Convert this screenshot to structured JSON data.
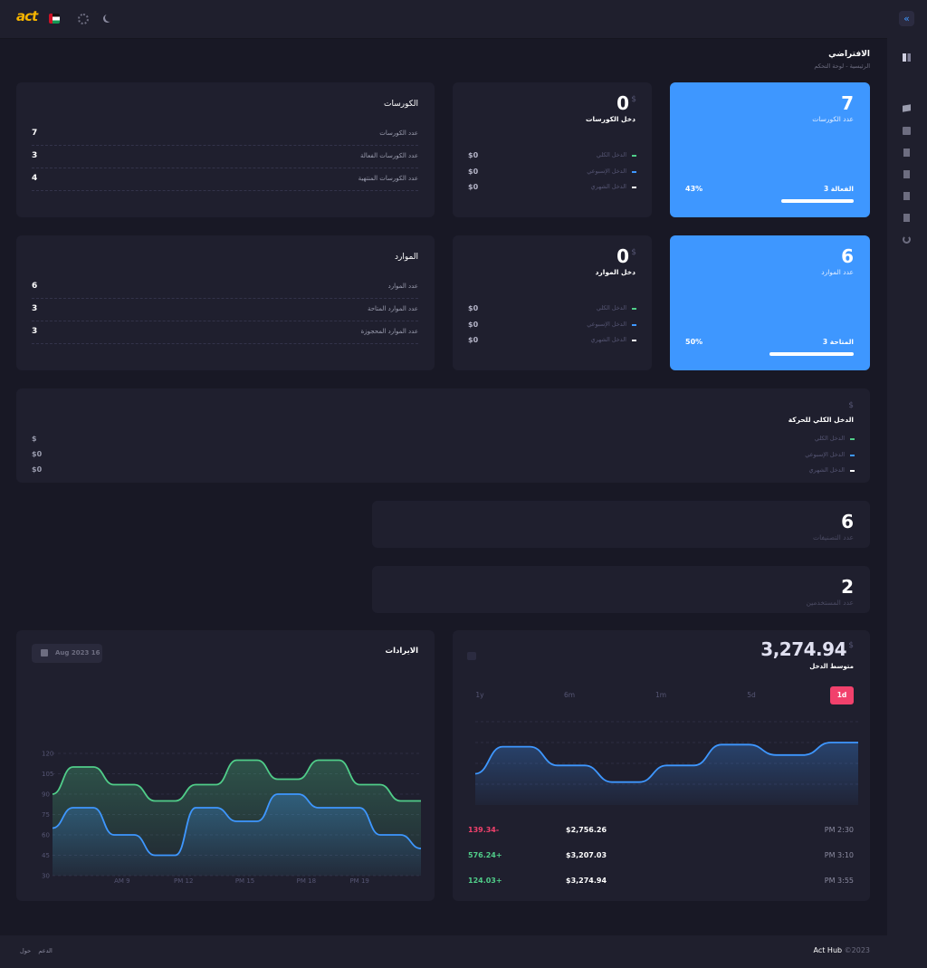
{
  "topbar": {
    "logo": "act"
  },
  "page": {
    "title": "الافتراضي",
    "breadcrumb": [
      "الرئيسية",
      "لوحة التحكم"
    ]
  },
  "summary_cards": [
    {
      "value": 7,
      "label": "عدد الكورسات",
      "status": "الفعالة 3",
      "percent": "43%",
      "progress": 43
    },
    {
      "value": 6,
      "label": "عدد الموارد",
      "status": "المتاحة 3",
      "percent": "50%",
      "progress": 50
    }
  ],
  "income_cards": [
    {
      "value": 0,
      "currency": "$",
      "title": "دخل الكورسات",
      "rows": [
        {
          "label": "الدخل الكلي",
          "amount": "$0"
        },
        {
          "label": "الدخل الإسبوعي",
          "amount": "$0"
        },
        {
          "label": "الدخل الشهري",
          "amount": "$0"
        }
      ]
    },
    {
      "value": 0,
      "currency": "$",
      "title": "دخل الموارد",
      "rows": [
        {
          "label": "الدخل الكلي",
          "amount": "$0"
        },
        {
          "label": "الدخل الإسبوعي",
          "amount": "$0"
        },
        {
          "label": "الدخل الشهري",
          "amount": "$0"
        }
      ]
    }
  ],
  "list_cards": [
    {
      "title": "الكورسات",
      "rows": [
        {
          "label": "عدد الكورسات",
          "value": 7
        },
        {
          "label": "عدد الكورسات الفعالة",
          "value": 3
        },
        {
          "label": "عدد الكورسات المنتهية",
          "value": 4
        }
      ]
    },
    {
      "title": "الموارد",
      "rows": [
        {
          "label": "عدد الموارد",
          "value": 6
        },
        {
          "label": "عدد الموارد المتاحة",
          "value": 3
        },
        {
          "label": "عدد الموارد المحجوزة",
          "value": 3
        }
      ]
    }
  ],
  "total_income": {
    "currency": "$",
    "title": "الدخل الكلي للحركة",
    "legend": [
      "الدخل الكلي",
      "الدخل الإسبوعي",
      "الدخل الشهري"
    ],
    "values": [
      "$",
      "$0",
      "$0"
    ]
  },
  "stat_cards": [
    {
      "value": 6,
      "label": "عدد التصنيفات"
    },
    {
      "value": 2,
      "label": "عدد المستخدمين"
    }
  ],
  "revenue": {
    "date": "Aug 2023 16"
  },
  "average_income": {
    "value": "3,274.94",
    "currency": "$",
    "label": "متوسط الدخل",
    "ranges": [
      "1y",
      "6m",
      "1m",
      "5d",
      "1d"
    ],
    "active_range": "1d",
    "transactions": [
      {
        "time": "PM 2:30",
        "price": "$2,756.26",
        "change": "139.34-"
      },
      {
        "time": "PM 3:10",
        "price": "$3,207.03",
        "change": "576.24+"
      },
      {
        "time": "PM 3:55",
        "price": "$3,274.94",
        "change": "124.03+"
      }
    ]
  },
  "chart_data": [
    {
      "type": "area",
      "title": "الايرادات",
      "x": [
        0,
        1,
        2,
        3,
        4,
        5,
        6,
        7,
        8,
        9,
        10,
        11,
        12,
        13,
        14,
        15,
        16,
        17,
        18
      ],
      "xlim": [
        0,
        18
      ],
      "xticks": [
        {
          "value": 3.4,
          "label": "AM 9"
        },
        {
          "value": 6.4,
          "label": "PM 12"
        },
        {
          "value": 9.4,
          "label": "PM 15"
        },
        {
          "value": 12.4,
          "label": "PM 18"
        },
        {
          "value": 15,
          "label": "PM 19"
        }
      ],
      "ylim": [
        30,
        120
      ],
      "yticks": [
        30,
        45,
        60,
        75,
        90,
        105,
        120
      ],
      "grid": true,
      "tick_labels": true,
      "series": [
        {
          "color": "#50cd89",
          "values": [
            90,
            110,
            110,
            97,
            97,
            85,
            85,
            97,
            97,
            115,
            115,
            101,
            101,
            115,
            115,
            97,
            97,
            85,
            85
          ]
        },
        {
          "color": "#3e97ff",
          "values": [
            65,
            80,
            80,
            60,
            60,
            45,
            45,
            80,
            80,
            70,
            70,
            90,
            90,
            80,
            80,
            80,
            60,
            60,
            50
          ]
        }
      ]
    },
    {
      "type": "area",
      "x": [
        0,
        1,
        2,
        3,
        4,
        5,
        6,
        7,
        8,
        9,
        10,
        11,
        12,
        13,
        14
      ],
      "xlim": [
        0,
        14
      ],
      "ylim": [
        0,
        4
      ],
      "yticks": [
        1,
        2,
        3,
        4
      ],
      "grid": true,
      "tick_labels": false,
      "series": [
        {
          "color": "#3e97ff",
          "values": [
            1.5,
            2.8,
            2.8,
            1.9,
            1.9,
            1.1,
            1.1,
            1.9,
            1.9,
            2.9,
            2.9,
            2.4,
            2.4,
            3.0,
            3.0
          ]
        }
      ]
    }
  ],
  "footer": {
    "brand": "Act Hub",
    "copyright": "©2023",
    "links": [
      "الدعم",
      "حول"
    ]
  }
}
